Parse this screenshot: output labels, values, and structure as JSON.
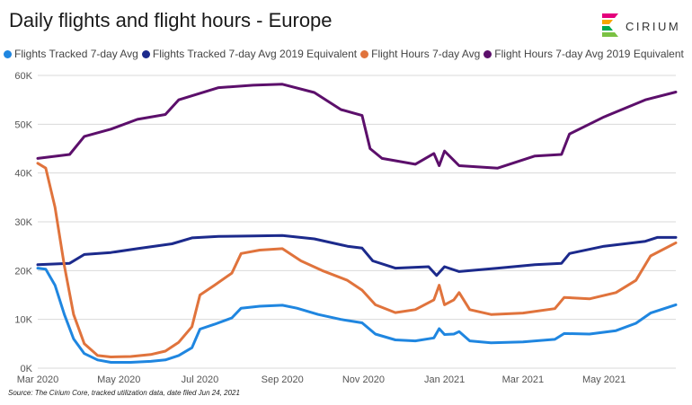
{
  "title": "Daily flights and flight hours - Europe",
  "logo": {
    "text": "CIRIUM",
    "colors": [
      "#e4007c",
      "#f7a600",
      "#00a94f",
      "#7ac143"
    ]
  },
  "source": "Source: The Cirium Core, tracked utilization data, date filed Jun 24, 2021",
  "chart_data": {
    "type": "line",
    "xlim": [
      "2020-03-01",
      "2021-06-24"
    ],
    "ylim": [
      0,
      60000
    ],
    "x_ticks": [
      {
        "date": "2020-03-01",
        "label": "Mar 2020"
      },
      {
        "date": "2020-05-01",
        "label": "May 2020"
      },
      {
        "date": "2020-07-01",
        "label": "Jul 2020"
      },
      {
        "date": "2020-09-01",
        "label": "Sep 2020"
      },
      {
        "date": "2020-11-01",
        "label": "Nov 2020"
      },
      {
        "date": "2021-01-01",
        "label": "Jan 2021"
      },
      {
        "date": "2021-03-01",
        "label": "Mar 2021"
      },
      {
        "date": "2021-05-01",
        "label": "May 2021"
      }
    ],
    "y_ticks": [
      {
        "value": 0,
        "label": "0K"
      },
      {
        "value": 10000,
        "label": "10K"
      },
      {
        "value": 20000,
        "label": "20K"
      },
      {
        "value": 30000,
        "label": "30K"
      },
      {
        "value": 40000,
        "label": "40K"
      },
      {
        "value": 50000,
        "label": "50K"
      },
      {
        "value": 60000,
        "label": "60K"
      }
    ],
    "grid": true,
    "legend": "top",
    "series": [
      {
        "name": "Flights Tracked 7-day Avg",
        "color": "#1f86e0",
        "points": [
          [
            "2020-03-01",
            20500
          ],
          [
            "2020-03-07",
            20300
          ],
          [
            "2020-03-14",
            17000
          ],
          [
            "2020-03-21",
            11000
          ],
          [
            "2020-03-28",
            6000
          ],
          [
            "2020-04-05",
            3000
          ],
          [
            "2020-04-15",
            1700
          ],
          [
            "2020-04-25",
            1200
          ],
          [
            "2020-05-10",
            1200
          ],
          [
            "2020-05-25",
            1400
          ],
          [
            "2020-06-05",
            1700
          ],
          [
            "2020-06-15",
            2600
          ],
          [
            "2020-06-25",
            4200
          ],
          [
            "2020-07-01",
            8000
          ],
          [
            "2020-07-12",
            9000
          ],
          [
            "2020-07-25",
            10300
          ],
          [
            "2020-08-01",
            12300
          ],
          [
            "2020-08-15",
            12700
          ],
          [
            "2020-09-01",
            12900
          ],
          [
            "2020-09-12",
            12300
          ],
          [
            "2020-09-28",
            11000
          ],
          [
            "2020-10-15",
            10000
          ],
          [
            "2020-10-31",
            9300
          ],
          [
            "2020-11-10",
            7000
          ],
          [
            "2020-11-25",
            5800
          ],
          [
            "2020-12-10",
            5600
          ],
          [
            "2020-12-24",
            6200
          ],
          [
            "2020-12-28",
            8100
          ],
          [
            "2021-01-01",
            6900
          ],
          [
            "2021-01-08",
            7000
          ],
          [
            "2021-01-12",
            7500
          ],
          [
            "2021-01-20",
            5600
          ],
          [
            "2021-02-05",
            5200
          ],
          [
            "2021-03-01",
            5400
          ],
          [
            "2021-03-25",
            5900
          ],
          [
            "2021-04-01",
            7100
          ],
          [
            "2021-04-20",
            7000
          ],
          [
            "2021-05-10",
            7700
          ],
          [
            "2021-05-25",
            9200
          ],
          [
            "2021-06-05",
            11300
          ],
          [
            "2021-06-24",
            13000
          ]
        ]
      },
      {
        "name": "Flights Tracked 7-day Avg 2019 Equivalent",
        "color": "#1c2a8c",
        "points": [
          [
            "2020-03-01",
            21200
          ],
          [
            "2020-03-25",
            21500
          ],
          [
            "2020-04-05",
            23300
          ],
          [
            "2020-04-25",
            23700
          ],
          [
            "2020-05-15",
            24500
          ],
          [
            "2020-06-10",
            25500
          ],
          [
            "2020-06-25",
            26700
          ],
          [
            "2020-07-15",
            27000
          ],
          [
            "2020-08-10",
            27100
          ],
          [
            "2020-09-01",
            27200
          ],
          [
            "2020-09-25",
            26500
          ],
          [
            "2020-10-20",
            25000
          ],
          [
            "2020-10-31",
            24600
          ],
          [
            "2020-11-08",
            22000
          ],
          [
            "2020-11-25",
            20500
          ],
          [
            "2020-12-20",
            20800
          ],
          [
            "2020-12-26",
            19000
          ],
          [
            "2021-01-01",
            20800
          ],
          [
            "2021-01-12",
            19800
          ],
          [
            "2021-02-10",
            20500
          ],
          [
            "2021-03-10",
            21200
          ],
          [
            "2021-03-30",
            21500
          ],
          [
            "2021-04-05",
            23500
          ],
          [
            "2021-05-01",
            25000
          ],
          [
            "2021-06-01",
            26000
          ],
          [
            "2021-06-10",
            26800
          ],
          [
            "2021-06-24",
            26800
          ]
        ]
      },
      {
        "name": "Flight Hours 7-day Avg",
        "color": "#e0733c",
        "points": [
          [
            "2020-03-01",
            42000
          ],
          [
            "2020-03-07",
            41000
          ],
          [
            "2020-03-14",
            33000
          ],
          [
            "2020-03-21",
            21000
          ],
          [
            "2020-03-28",
            11000
          ],
          [
            "2020-04-05",
            5000
          ],
          [
            "2020-04-15",
            2600
          ],
          [
            "2020-04-25",
            2300
          ],
          [
            "2020-05-10",
            2400
          ],
          [
            "2020-05-25",
            2800
          ],
          [
            "2020-06-05",
            3500
          ],
          [
            "2020-06-15",
            5300
          ],
          [
            "2020-06-25",
            8500
          ],
          [
            "2020-07-01",
            15000
          ],
          [
            "2020-07-12",
            17000
          ],
          [
            "2020-07-25",
            19500
          ],
          [
            "2020-08-01",
            23500
          ],
          [
            "2020-08-15",
            24200
          ],
          [
            "2020-09-01",
            24500
          ],
          [
            "2020-09-15",
            22000
          ],
          [
            "2020-10-01",
            20000
          ],
          [
            "2020-10-20",
            18000
          ],
          [
            "2020-10-31",
            16000
          ],
          [
            "2020-11-10",
            13000
          ],
          [
            "2020-11-25",
            11400
          ],
          [
            "2020-12-10",
            12000
          ],
          [
            "2020-12-24",
            14000
          ],
          [
            "2020-12-28",
            17000
          ],
          [
            "2021-01-01",
            13000
          ],
          [
            "2021-01-08",
            14000
          ],
          [
            "2021-01-12",
            15500
          ],
          [
            "2021-01-20",
            12000
          ],
          [
            "2021-02-05",
            11000
          ],
          [
            "2021-03-01",
            11300
          ],
          [
            "2021-03-25",
            12200
          ],
          [
            "2021-04-01",
            14500
          ],
          [
            "2021-04-20",
            14200
          ],
          [
            "2021-05-10",
            15500
          ],
          [
            "2021-05-25",
            18000
          ],
          [
            "2021-06-05",
            23000
          ],
          [
            "2021-06-24",
            25700
          ]
        ]
      },
      {
        "name": "Flight Hours 7-day Avg 2019 Equivalent",
        "color": "#5c0f6b",
        "points": [
          [
            "2020-03-01",
            43000
          ],
          [
            "2020-03-25",
            43800
          ],
          [
            "2020-04-05",
            47500
          ],
          [
            "2020-04-25",
            49000
          ],
          [
            "2020-05-15",
            51000
          ],
          [
            "2020-06-05",
            52000
          ],
          [
            "2020-06-15",
            55000
          ],
          [
            "2020-07-15",
            57500
          ],
          [
            "2020-08-10",
            58000
          ],
          [
            "2020-09-01",
            58200
          ],
          [
            "2020-09-25",
            56500
          ],
          [
            "2020-10-15",
            53000
          ],
          [
            "2020-10-31",
            51800
          ],
          [
            "2020-11-06",
            45000
          ],
          [
            "2020-11-15",
            43000
          ],
          [
            "2020-12-10",
            41800
          ],
          [
            "2020-12-24",
            44000
          ],
          [
            "2020-12-28",
            41500
          ],
          [
            "2021-01-01",
            44500
          ],
          [
            "2021-01-12",
            41500
          ],
          [
            "2021-02-10",
            41000
          ],
          [
            "2021-03-10",
            43500
          ],
          [
            "2021-03-30",
            43800
          ],
          [
            "2021-04-05",
            48000
          ],
          [
            "2021-05-01",
            51500
          ],
          [
            "2021-06-01",
            55000
          ],
          [
            "2021-06-24",
            56600
          ]
        ]
      }
    ]
  }
}
